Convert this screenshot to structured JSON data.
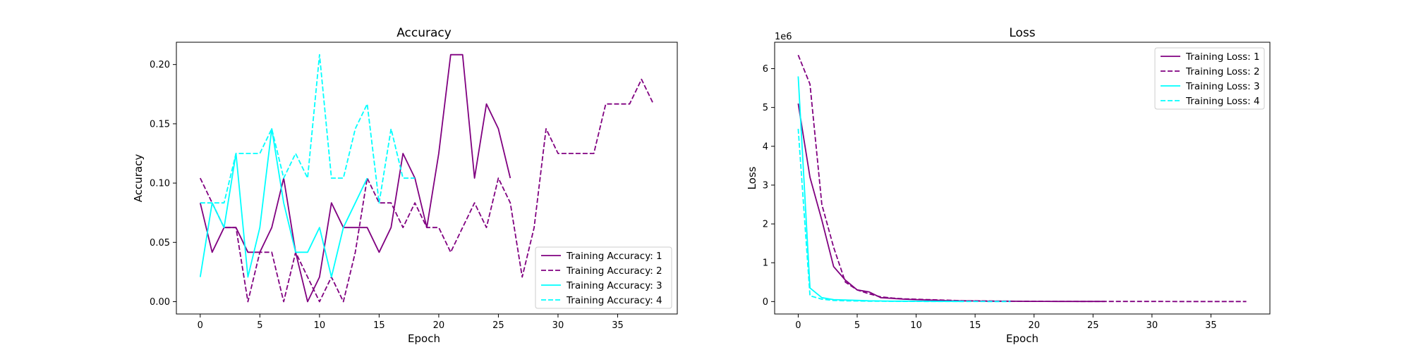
{
  "colors": {
    "purple": "#800080",
    "cyan": "#00ffff"
  },
  "chart_data": [
    {
      "type": "line",
      "title": "Accuracy",
      "xlabel": "Epoch",
      "ylabel": "Accuracy",
      "xlim": [
        -2,
        40
      ],
      "ylim": [
        -0.0104,
        0.2188
      ],
      "xticks": [
        0,
        5,
        10,
        15,
        20,
        25,
        30,
        35
      ],
      "yticks": [
        0.0,
        0.05,
        0.1,
        0.15,
        0.2
      ],
      "ytick_labels": [
        "0.00",
        "0.05",
        "0.10",
        "0.15",
        "0.20"
      ],
      "grid": false,
      "legend_position": "lower-right",
      "series": [
        {
          "name": "Training Accuracy: 1",
          "color": "#800080",
          "dash": "solid",
          "values": [
            0.0833,
            0.0417,
            0.0625,
            0.0625,
            0.0417,
            0.0417,
            0.0625,
            0.1042,
            0.0417,
            0.0,
            0.0208,
            0.0833,
            0.0625,
            0.0625,
            0.0625,
            0.0417,
            0.0625,
            0.125,
            0.1042,
            0.0625,
            0.125,
            0.2083,
            0.2083,
            0.1042,
            0.1667,
            0.1458,
            0.1042
          ]
        },
        {
          "name": "Training Accuracy: 2",
          "color": "#800080",
          "dash": "dashed",
          "values": [
            0.1042,
            0.0833,
            0.0625,
            0.0625,
            0.0,
            0.0417,
            0.0417,
            0.0,
            0.0417,
            0.0208,
            0.0,
            0.0208,
            0.0,
            0.0417,
            0.1042,
            0.0833,
            0.0833,
            0.0625,
            0.0833,
            0.0625,
            0.0625,
            0.0417,
            0.0625,
            0.0833,
            0.0625,
            0.1042,
            0.0833,
            0.0208,
            0.0625,
            0.1458,
            0.125,
            0.125,
            0.125,
            0.125,
            0.1667,
            0.1667,
            0.1667,
            0.1875,
            0.1667
          ]
        },
        {
          "name": "Training Accuracy: 3",
          "color": "#00ffff",
          "dash": "solid",
          "values": [
            0.0208,
            0.0833,
            0.0625,
            0.125,
            0.0208,
            0.0625,
            0.1458,
            0.0833,
            0.0417,
            0.0417,
            0.0625,
            0.0208,
            0.0625,
            0.0833,
            0.1042
          ]
        },
        {
          "name": "Training Accuracy: 4",
          "color": "#00ffff",
          "dash": "dashed",
          "values": [
            0.0833,
            0.0833,
            0.0833,
            0.125,
            0.125,
            0.125,
            0.1458,
            0.1042,
            0.125,
            0.1042,
            0.2083,
            0.1042,
            0.1042,
            0.1458,
            0.1667,
            0.0833,
            0.1458,
            0.1042,
            0.1042
          ]
        }
      ]
    },
    {
      "type": "line",
      "title": "Loss",
      "xlabel": "Epoch",
      "ylabel": "Loss",
      "offset_label": "1e6",
      "xlim": [
        -2,
        40
      ],
      "ylim": [
        -0.32,
        6.68
      ],
      "xticks": [
        0,
        5,
        10,
        15,
        20,
        25,
        30,
        35
      ],
      "yticks": [
        0,
        1,
        2,
        3,
        4,
        5,
        6
      ],
      "ytick_labels": [
        "0",
        "1",
        "2",
        "3",
        "4",
        "5",
        "6"
      ],
      "grid": false,
      "legend_position": "upper-right",
      "series": [
        {
          "name": "Training Loss: 1",
          "color": "#800080",
          "dash": "solid",
          "values": [
            5.1,
            3.2,
            2.1,
            0.9,
            0.55,
            0.3,
            0.25,
            0.1,
            0.08,
            0.06,
            0.05,
            0.04,
            0.03,
            0.02,
            0.02,
            0.015,
            0.01,
            0.01,
            0.008,
            0.006,
            0.005,
            0.004,
            0.003,
            0.003,
            0.002,
            0.002,
            0.002
          ]
        },
        {
          "name": "Training Loss: 2",
          "color": "#800080",
          "dash": "dashed",
          "values": [
            6.35,
            5.6,
            2.5,
            1.4,
            0.5,
            0.3,
            0.2,
            0.12,
            0.09,
            0.07,
            0.06,
            0.05,
            0.04,
            0.03,
            0.02,
            0.02,
            0.015,
            0.01,
            0.01,
            0.008,
            0.006,
            0.005,
            0.004,
            0.004,
            0.003,
            0.003,
            0.003,
            0.002,
            0.002,
            0.002,
            0.002,
            0.002,
            0.001,
            0.001,
            0.001,
            0.001,
            0.001,
            0.001,
            0.001
          ]
        },
        {
          "name": "Training Loss: 3",
          "color": "#00ffff",
          "dash": "solid",
          "values": [
            5.8,
            0.35,
            0.1,
            0.05,
            0.04,
            0.03,
            0.02,
            0.015,
            0.01,
            0.01,
            0.008,
            0.006,
            0.005,
            0.004,
            0.003
          ]
        },
        {
          "name": "Training Loss: 4",
          "color": "#00ffff",
          "dash": "dashed",
          "values": [
            4.45,
            0.15,
            0.06,
            0.03,
            0.02,
            0.015,
            0.01,
            0.008,
            0.006,
            0.005,
            0.004,
            0.003,
            0.003,
            0.002,
            0.002,
            0.002,
            0.001,
            0.001,
            0.001
          ]
        }
      ]
    }
  ]
}
